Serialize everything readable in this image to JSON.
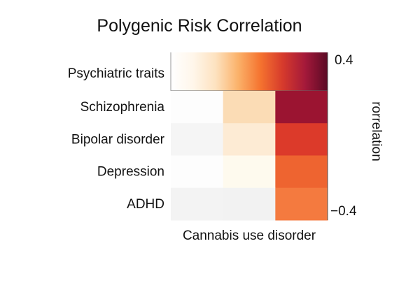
{
  "chart_data": {
    "type": "heatmap",
    "title": "Polygenic Risk Correlation",
    "xlabel": "Cannabis use disorder",
    "colorbar": {
      "label": "rorrelation",
      "max_label": "0.4",
      "min_label": "−0.4",
      "range": [
        -0.4,
        0.4
      ]
    },
    "header_row_label": "Psychiatric traits",
    "rows": [
      "Schizophrenia",
      "Bipolar disorder",
      "Depression",
      "ADHD"
    ],
    "columns": 3,
    "cells": [
      [
        "#fdfdfd",
        "#fbdcb5",
        "#9b1431"
      ],
      [
        "#f5f5f5",
        "#fdebd4",
        "#dc3a2a"
      ],
      [
        "#fdfdfd",
        "#fefaee",
        "#ee6430"
      ],
      [
        "#f3f3f3",
        "#f2f2f2",
        "#f47a3f"
      ]
    ],
    "colorscale": [
      "#ffffff",
      "#fff6ea",
      "#fde2c0",
      "#fbb26a",
      "#f5732f",
      "#d63a2c",
      "#a4193a",
      "#5a0a25"
    ]
  }
}
